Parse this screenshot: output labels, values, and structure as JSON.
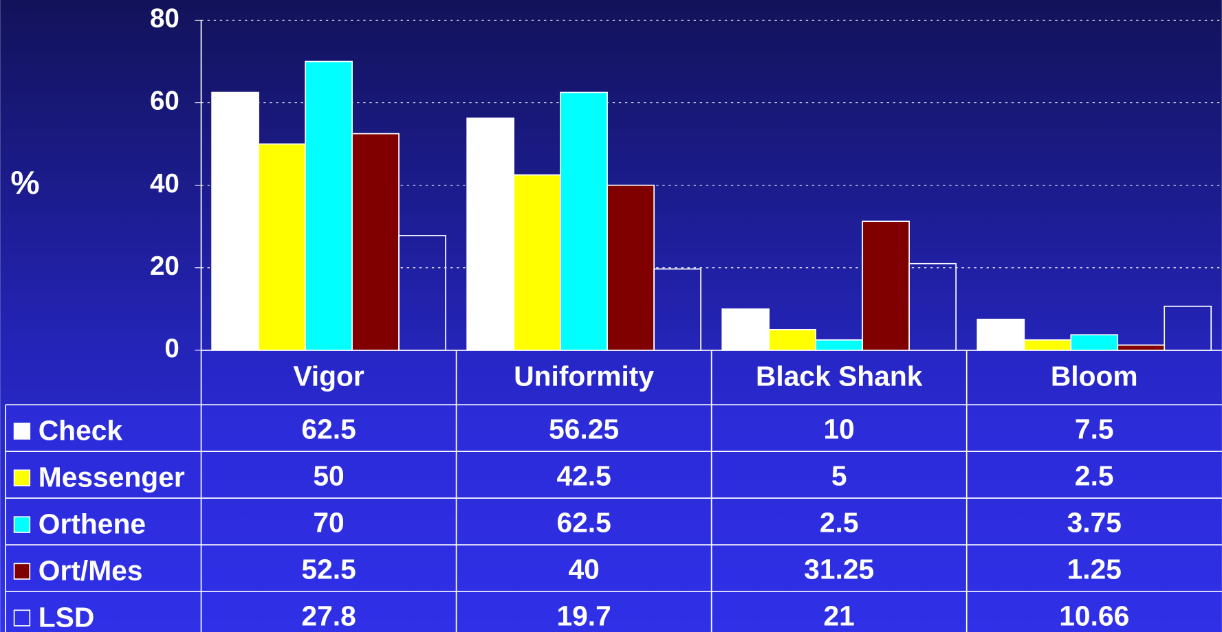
{
  "chart_data": {
    "type": "bar",
    "y_label": "%",
    "categories": [
      "Vigor",
      "Uniformity",
      "Black Shank",
      "Bloom"
    ],
    "series": [
      {
        "name": "Check",
        "color": "#ffffff",
        "values": [
          62.5,
          56.25,
          10,
          7.5
        ]
      },
      {
        "name": "Messenger",
        "color": "#ffff00",
        "values": [
          50,
          42.5,
          5,
          2.5
        ]
      },
      {
        "name": "Orthene",
        "color": "#00ffff",
        "values": [
          70,
          62.5,
          2.5,
          3.75
        ]
      },
      {
        "name": "Ort/Mes",
        "color": "#800000",
        "values": [
          52.5,
          40,
          31.25,
          1.25
        ]
      },
      {
        "name": "LSD",
        "color": "none",
        "values": [
          27.8,
          19.7,
          21,
          10.66
        ]
      }
    ],
    "ylim": [
      0,
      80
    ],
    "yticks": [
      0,
      20,
      40,
      60,
      80
    ],
    "grid": true
  }
}
